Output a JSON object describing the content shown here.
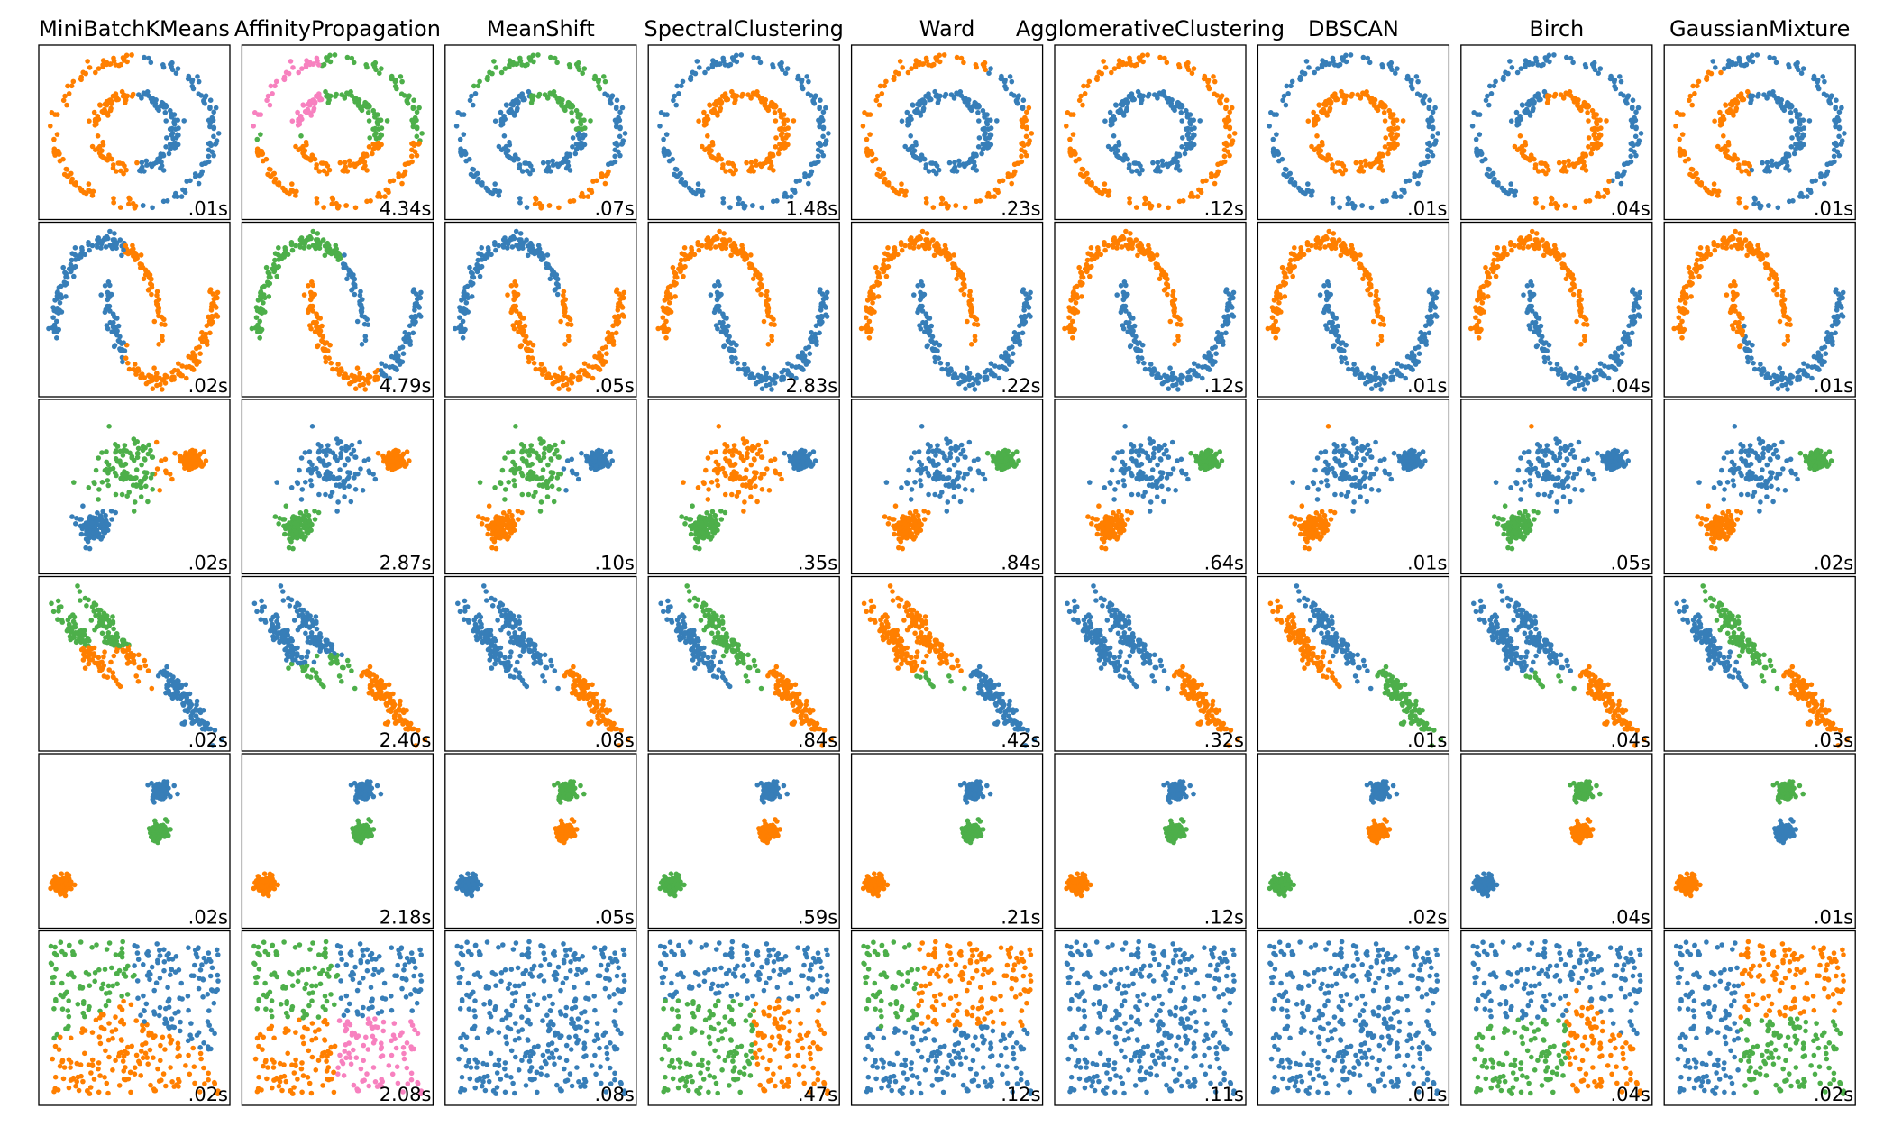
{
  "chart_data": {
    "type": "scatter-grid",
    "titles": [
      "MiniBatchKMeans",
      "AffinityPropagation",
      "MeanShift",
      "SpectralClustering",
      "Ward",
      "AgglomerativeClustering",
      "DBSCAN",
      "Birch",
      "GaussianMixture"
    ],
    "times": [
      [
        ".01s",
        "4.34s",
        ".07s",
        "1.48s",
        ".23s",
        ".12s",
        ".01s",
        ".04s",
        ".01s"
      ],
      [
        ".02s",
        "4.79s",
        ".05s",
        "2.83s",
        ".22s",
        ".12s",
        ".01s",
        ".04s",
        ".01s"
      ],
      [
        ".02s",
        "2.87s",
        ".10s",
        ".35s",
        ".84s",
        ".64s",
        ".01s",
        ".05s",
        ".02s"
      ],
      [
        ".02s",
        "2.40s",
        ".08s",
        ".84s",
        ".42s",
        ".32s",
        ".01s",
        ".04s",
        ".03s"
      ],
      [
        ".02s",
        "2.18s",
        ".05s",
        ".59s",
        ".21s",
        ".12s",
        ".02s",
        ".04s",
        ".01s"
      ],
      [
        ".02s",
        "2.08s",
        ".08s",
        ".47s",
        ".12s",
        ".11s",
        ".01s",
        ".04s",
        ".02s"
      ]
    ],
    "palette": [
      "#377eb8",
      "#ff7f00",
      "#4daf4a",
      "#f781bf"
    ]
  }
}
